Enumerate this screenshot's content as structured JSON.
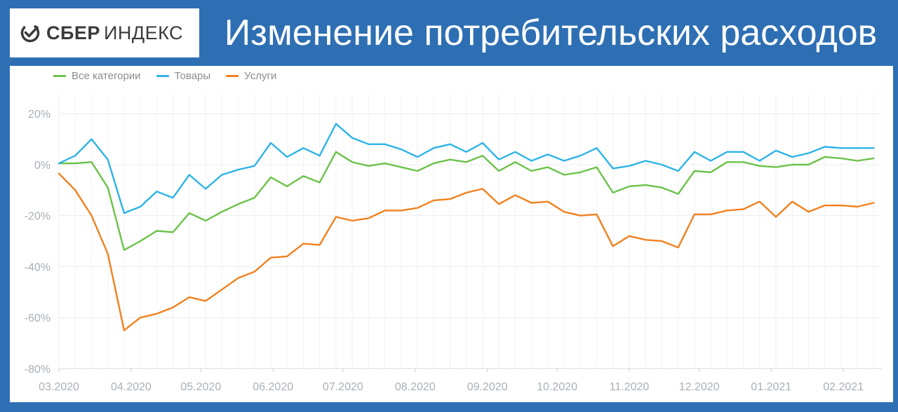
{
  "header": {
    "logo_brand": "СБЕР",
    "logo_sub": "ИНДЕКС",
    "title": "Изменение потребительских расходов"
  },
  "chart_data": {
    "type": "line",
    "title": "Изменение потребительских расходов",
    "xlabel": "",
    "ylabel": "",
    "ylim": [
      -80,
      25
    ],
    "y_ticks": [
      "20%",
      "0%",
      "-20%",
      "-40%",
      "-60%",
      "-80%"
    ],
    "y_tick_values": [
      20,
      0,
      -20,
      -40,
      -60,
      -80
    ],
    "x_ticks": [
      "03.2020",
      "04.2020",
      "05.2020",
      "06.2020",
      "07.2020",
      "08.2020",
      "09.2020",
      "10.2020",
      "11.2020",
      "12.2020",
      "01.2021",
      "02.2021"
    ],
    "x_tick_weeks": [
      0,
      4.43,
      8.71,
      13.14,
      17.43,
      21.86,
      26.29,
      30.57,
      35.0,
      39.29,
      43.71,
      48.14
    ],
    "x_range_weeks": [
      0,
      50.5
    ],
    "grid": true,
    "legend": "top-left",
    "series": [
      {
        "name": "Все категории",
        "color": "#6cc24a",
        "values": [
          0.5,
          0.5,
          1,
          -9,
          -33.5,
          -30,
          -26,
          -26.5,
          -19,
          -22,
          -18.5,
          -15.5,
          -13,
          -5,
          -8.5,
          -4.5,
          -7,
          5,
          1,
          -0.5,
          0.5,
          -1,
          -2.5,
          0.5,
          2,
          1,
          3.5,
          -2.5,
          1,
          -2.5,
          -1,
          -4,
          -3,
          -1,
          -11,
          -8.5,
          -8,
          -9,
          -11.5,
          -2.5,
          -3,
          1,
          1,
          -0.5,
          -1,
          0,
          0,
          3,
          2.5,
          1.5,
          2.5
        ]
      },
      {
        "name": "Товары",
        "color": "#2eb3e8",
        "values": [
          0.5,
          3.5,
          10,
          2,
          -19,
          -16.5,
          -10.5,
          -13,
          -4,
          -9.5,
          -4,
          -2,
          -0.5,
          8.5,
          3,
          6.5,
          3.5,
          16,
          10.5,
          8,
          8,
          6,
          3,
          6.5,
          8,
          5,
          8.5,
          2,
          5,
          1.5,
          4,
          1.5,
          3.5,
          6.5,
          -1.5,
          -0.5,
          1.5,
          0,
          -2.5,
          5,
          1.5,
          5,
          5,
          1.5,
          5.5,
          3,
          4.5,
          7,
          6.5,
          6.5,
          6.5
        ]
      },
      {
        "name": "Услуги",
        "color": "#f0811f",
        "values": [
          -3.5,
          -10,
          -20,
          -35,
          -65,
          -60,
          -58.5,
          -56,
          -52,
          -53.5,
          -49,
          -44.5,
          -42,
          -36.5,
          -36,
          -31,
          -31.5,
          -20.5,
          -22,
          -21,
          -18,
          -18,
          -17,
          -14,
          -13.5,
          -11,
          -9.5,
          -15.5,
          -12,
          -15,
          -14.5,
          -18.5,
          -20,
          -19.5,
          -32,
          -28,
          -29.5,
          -30,
          -32.5,
          -19.5,
          -19.5,
          -18,
          -17.5,
          -14.5,
          -20.5,
          -14.5,
          -18.5,
          -16,
          -16,
          -16.5,
          -15
        ]
      }
    ]
  }
}
